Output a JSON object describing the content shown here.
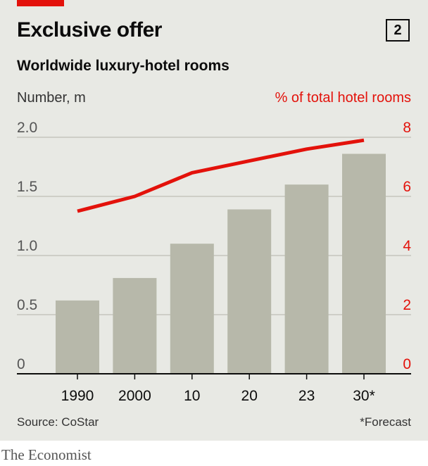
{
  "header": {
    "title": "Exclusive offer",
    "badge": "2",
    "subtitle": "Worldwide luxury-hotel rooms"
  },
  "colors": {
    "accent": "#e3120b",
    "bar": "#b7b8aa",
    "background": "#e8e9e4"
  },
  "chart_data": {
    "type": "bar",
    "categories": [
      "1990",
      "2000",
      "10",
      "20",
      "23",
      "30*"
    ],
    "series": [
      {
        "name": "",
        "axis": "left",
        "type": "bar",
        "values": [
          0.62,
          0.81,
          1.1,
          1.39,
          1.6,
          1.86
        ]
      },
      {
        "name": "",
        "axis": "right",
        "type": "line",
        "values": [
          5.5,
          6.0,
          6.8,
          7.2,
          7.6,
          7.9
        ]
      }
    ],
    "ylabel": "Number, m",
    "y2label": "% of total hotel rooms",
    "ylim": [
      0,
      2.0
    ],
    "y2lim": [
      0,
      8
    ],
    "yticks": [
      "0",
      "0.5",
      "1.0",
      "1.5",
      "2.0"
    ],
    "yticks_values": [
      0,
      0.5,
      1.0,
      1.5,
      2.0
    ],
    "y2ticks": [
      "0",
      "2",
      "4",
      "6",
      "8"
    ],
    "grid": true
  },
  "footer": {
    "source": "Source: CoStar",
    "note": "*Forecast",
    "brand": "The Economist"
  }
}
